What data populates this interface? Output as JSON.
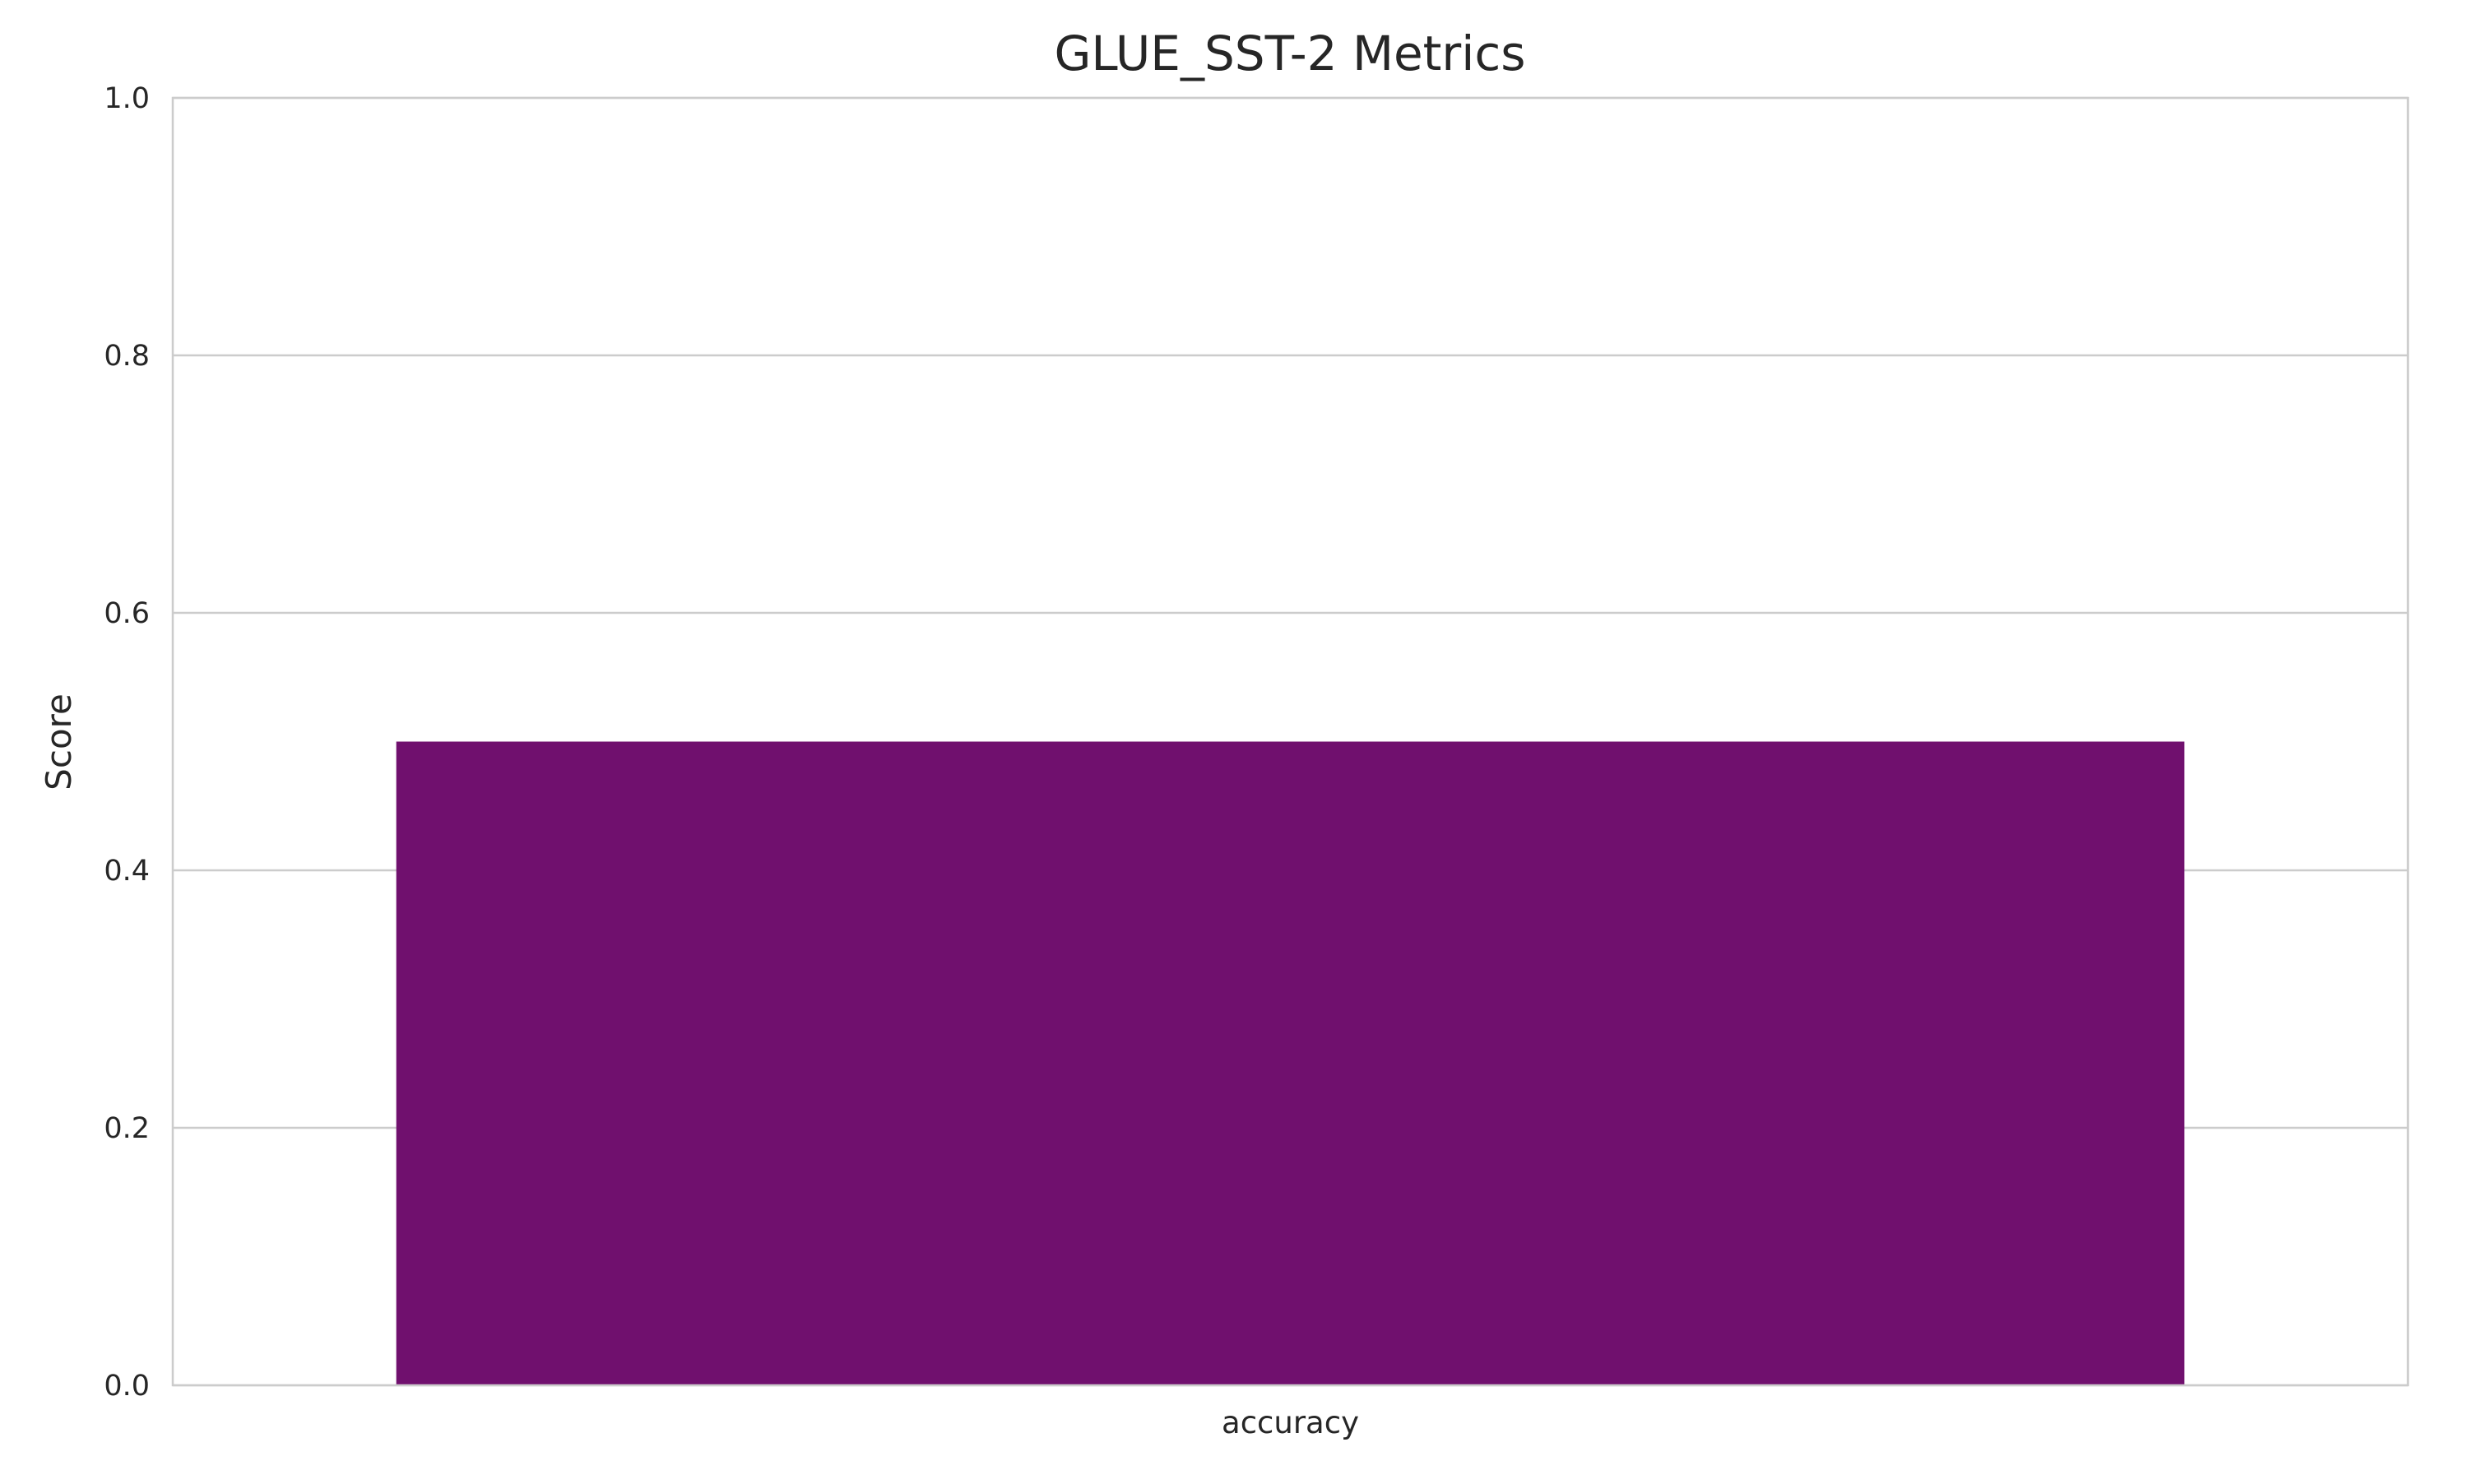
{
  "chart_data": {
    "type": "bar",
    "title": "GLUE_SST-2 Metrics",
    "xlabel": "",
    "ylabel": "Score",
    "categories": [
      "accuracy"
    ],
    "values": [
      0.5
    ],
    "ylim": [
      0,
      1.0
    ],
    "yticks": [
      "0.0",
      "0.2",
      "0.4",
      "0.6",
      "0.8",
      "1.0"
    ],
    "grid": true,
    "bar_color": "#70106e"
  }
}
